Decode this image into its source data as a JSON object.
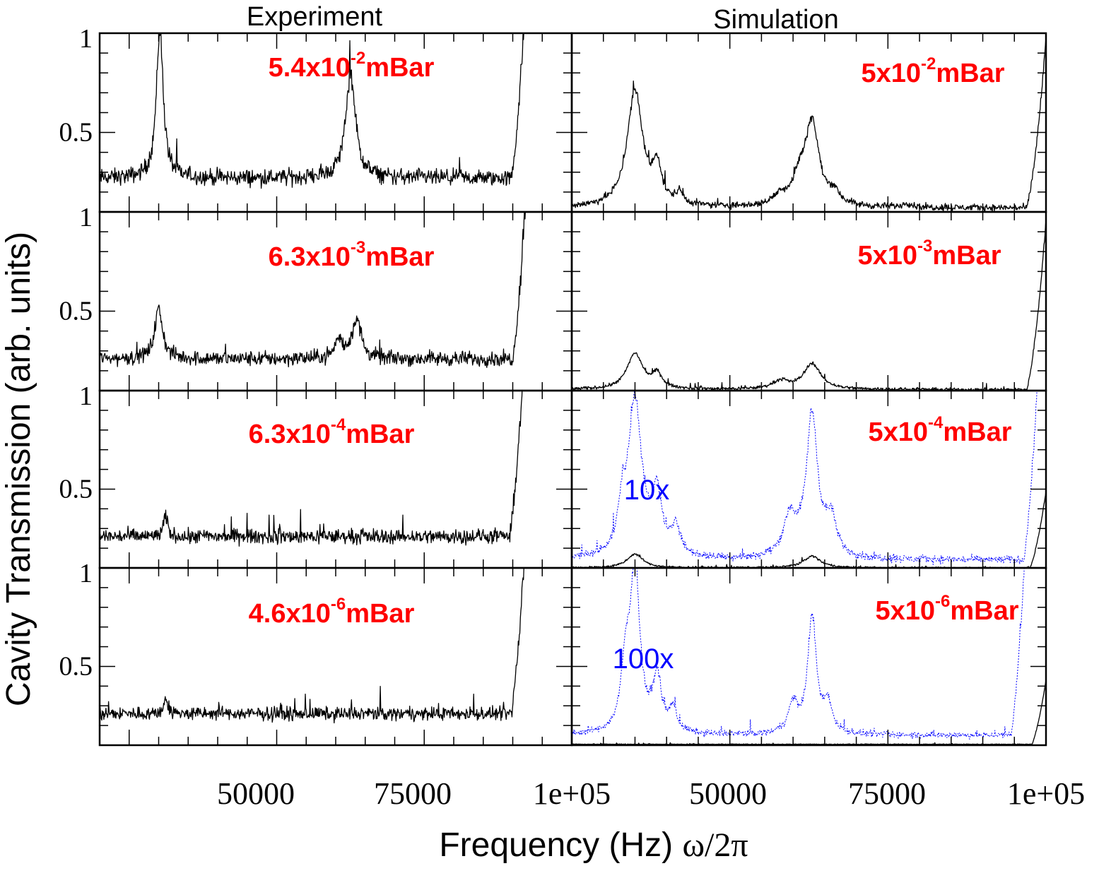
{
  "chart_data": {
    "type": "line",
    "xlabel": "Frequency (Hz)",
    "xlabel_suffix": "ω/2π",
    "ylabel": "Cavity Transmission (arb. units)",
    "columns": [
      {
        "title": "Experiment",
        "xlim": [
          20000,
          100000
        ],
        "x_tick_labels": [
          "50000",
          "75000",
          "1e+05"
        ]
      },
      {
        "title": "Simulation",
        "xlim": [
          25000,
          100000
        ],
        "x_tick_labels": [
          "50000",
          "75000",
          "1e+05"
        ]
      }
    ],
    "y_tick_labels": [
      "0.5",
      "1"
    ],
    "ylim": [
      0.1,
      1.0
    ],
    "panels": [
      {
        "id": "exp-1",
        "column": 0,
        "row": 0,
        "pressure": {
          "base": "5.4x10",
          "exp": "-2",
          "unit": "mBar"
        },
        "series": [
          {
            "name": "experiment",
            "color": "#000000",
            "baseline": 0.27,
            "noise": 0.06,
            "peaks": [
              [
                30200,
                0.75,
                700
              ],
              [
                62500,
                0.52,
                1000
              ]
            ],
            "edge": [
              [
                89800,
                0.75
              ]
            ]
          }
        ]
      },
      {
        "id": "exp-2",
        "column": 0,
        "row": 1,
        "pressure": {
          "base": "6.3x10",
          "exp": "-3",
          "unit": "mBar"
        },
        "series": [
          {
            "name": "experiment",
            "color": "#000000",
            "baseline": 0.26,
            "noise": 0.055,
            "peaks": [
              [
                30000,
                0.25,
                800
              ],
              [
                60500,
                0.09,
                800
              ],
              [
                63500,
                0.2,
                900
              ]
            ],
            "edge": [
              [
                90000,
                0.75
              ]
            ]
          }
        ]
      },
      {
        "id": "exp-3",
        "column": 0,
        "row": 2,
        "pressure": {
          "base": "6.3x10",
          "exp": "-4",
          "unit": "mBar"
        },
        "series": [
          {
            "name": "experiment",
            "color": "#000000",
            "baseline": 0.26,
            "noise": 0.055,
            "peaks": [
              [
                31200,
                0.1,
                400
              ]
            ],
            "edge": [
              [
                89500,
                0.75
              ]
            ]
          }
        ]
      },
      {
        "id": "exp-4",
        "column": 0,
        "row": 3,
        "pressure": {
          "base": "4.6x10",
          "exp": "-6",
          "unit": "mBar"
        },
        "series": [
          {
            "name": "experiment",
            "color": "#000000",
            "baseline": 0.26,
            "noise": 0.05,
            "peaks": [
              [
                31200,
                0.08,
                400
              ]
            ],
            "edge": [
              [
                89800,
                0.75
              ]
            ]
          }
        ]
      },
      {
        "id": "sim-1",
        "column": 1,
        "row": 0,
        "pressure": {
          "base": "5x10",
          "exp": "-2",
          "unit": "mBar"
        },
        "series": [
          {
            "name": "simulation",
            "color": "#000000",
            "baseline": 0.12,
            "noise": 0.025,
            "peaks": [
              [
                35000,
                0.58,
                1500
              ],
              [
                38500,
                0.18,
                800
              ],
              [
                42000,
                0.06,
                700
              ],
              [
                58000,
                0.05,
                1200
              ],
              [
                61000,
                0.12,
                1200
              ],
              [
                63000,
                0.42,
                1300
              ],
              [
                66500,
                0.06,
                1000
              ],
              [
                78000,
                0.02,
                900
              ]
            ],
            "edge": [
              [
                97000,
                0.5
              ]
            ]
          }
        ]
      },
      {
        "id": "sim-2",
        "column": 1,
        "row": 1,
        "pressure": {
          "base": "5x10",
          "exp": "-3",
          "unit": "mBar"
        },
        "series": [
          {
            "name": "simulation",
            "color": "#000000",
            "baseline": 0.105,
            "noise": 0.012,
            "peaks": [
              [
                35000,
                0.18,
                1500
              ],
              [
                38500,
                0.07,
                900
              ],
              [
                58000,
                0.04,
                1500
              ],
              [
                63000,
                0.13,
                1600
              ]
            ],
            "edge": [
              [
                97000,
                0.5
              ]
            ]
          }
        ]
      },
      {
        "id": "sim-3",
        "column": 1,
        "row": 2,
        "pressure": {
          "base": "5x10",
          "exp": "-4",
          "unit": "mBar"
        },
        "scale_label": "10x",
        "series": [
          {
            "name": "simulation",
            "color": "#000000",
            "baseline": 0.1,
            "noise": 0.008,
            "peaks": [
              [
                35000,
                0.07,
                1500
              ],
              [
                63000,
                0.06,
                1600
              ]
            ],
            "edge": [
              [
                97500,
                0.3
              ]
            ]
          },
          {
            "name": "simulation ×10",
            "color": "#0000ff",
            "baseline": 0.14,
            "noise": 0.03,
            "peaks": [
              [
                35000,
                0.8,
                1300
              ],
              [
                38500,
                0.3,
                900
              ],
              [
                41500,
                0.15,
                800
              ],
              [
                33000,
                0.2,
                700
              ],
              [
                59500,
                0.2,
                1200
              ],
              [
                63000,
                0.72,
                1100
              ],
              [
                66000,
                0.18,
                1000
              ]
            ],
            "edge": [
              [
                96500,
                0.85
              ]
            ]
          }
        ]
      },
      {
        "id": "sim-4",
        "column": 1,
        "row": 3,
        "pressure": {
          "base": "5x10",
          "exp": "-6",
          "unit": "mBar"
        },
        "scale_label": "100x",
        "series": [
          {
            "name": "simulation",
            "color": "#000000",
            "baseline": 0.105,
            "noise": 0.003,
            "peaks": [],
            "edge": [
              [
                97800,
                0.3
              ]
            ]
          },
          {
            "name": "simulation ×100",
            "color": "#0000ff",
            "baseline": 0.15,
            "noise": 0.025,
            "peaks": [
              [
                35000,
                0.85,
                900
              ],
              [
                33500,
                0.3,
                800
              ],
              [
                38500,
                0.28,
                800
              ],
              [
                41000,
                0.12,
                700
              ],
              [
                60000,
                0.15,
                900
              ],
              [
                63000,
                0.6,
                800
              ],
              [
                65500,
                0.15,
                800
              ]
            ],
            "edge": [
              [
                94500,
                0.85
              ]
            ]
          }
        ]
      }
    ]
  }
}
